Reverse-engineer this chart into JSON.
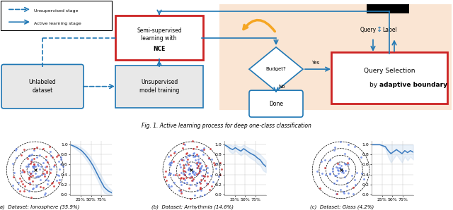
{
  "fig_caption": "Fig. 1. Active learning process for deep one-class classification",
  "subplot_captions": [
    "(a)  Dataset: Ionosphere (35.9%)",
    "(b)  Dataset: Arrhythmia (14.6%)",
    "(c)  Dataset: Glass (4.2%)"
  ],
  "blue": "#1f77b4",
  "red_border": "#cc2222",
  "orange_bg": "#fae5d3",
  "orange_arrow": "#f5a623",
  "gray_box": "#e8e8e8",
  "line_color": "#3a7abf",
  "line_fill_color": "#aac8e8",
  "normal_color": "#5577dd",
  "anomaly_color": "#cc3333",
  "ionosphere_line": [
    1.0,
    0.97,
    0.93,
    0.88,
    0.8,
    0.7,
    0.58,
    0.43,
    0.28,
    0.14,
    0.07,
    0.03
  ],
  "ionosphere_upper": [
    1.0,
    1.0,
    0.98,
    0.94,
    0.88,
    0.79,
    0.68,
    0.54,
    0.4,
    0.25,
    0.15,
    0.08
  ],
  "ionosphere_lower": [
    1.0,
    0.94,
    0.88,
    0.82,
    0.72,
    0.61,
    0.48,
    0.32,
    0.16,
    0.03,
    0.0,
    0.0
  ],
  "arrhythmia_line": [
    1.0,
    0.97,
    0.93,
    0.9,
    0.94,
    0.9,
    0.87,
    0.92,
    0.88,
    0.84,
    0.81,
    0.78,
    0.73,
    0.69,
    0.61,
    0.56
  ],
  "arrhythmia_upper": [
    1.0,
    1.0,
    1.0,
    0.98,
    1.0,
    0.97,
    0.96,
    1.0,
    0.96,
    0.93,
    0.91,
    0.88,
    0.85,
    0.8,
    0.74,
    0.68
  ],
  "arrhythmia_lower": [
    1.0,
    0.94,
    0.86,
    0.82,
    0.88,
    0.83,
    0.78,
    0.84,
    0.8,
    0.75,
    0.71,
    0.68,
    0.61,
    0.58,
    0.48,
    0.44
  ],
  "glass_line": [
    1.0,
    1.0,
    1.0,
    1.0,
    0.98,
    0.96,
    0.88,
    0.82,
    0.86,
    0.9,
    0.86,
    0.82,
    0.88,
    0.84,
    0.88,
    0.85
  ],
  "glass_upper": [
    1.0,
    1.0,
    1.0,
    1.0,
    1.0,
    1.0,
    1.0,
    1.0,
    1.0,
    1.0,
    1.0,
    1.0,
    1.0,
    1.0,
    1.0,
    1.0
  ],
  "glass_lower": [
    1.0,
    1.0,
    1.0,
    1.0,
    0.96,
    0.92,
    0.76,
    0.64,
    0.72,
    0.8,
    0.72,
    0.64,
    0.76,
    0.68,
    0.76,
    0.7
  ]
}
